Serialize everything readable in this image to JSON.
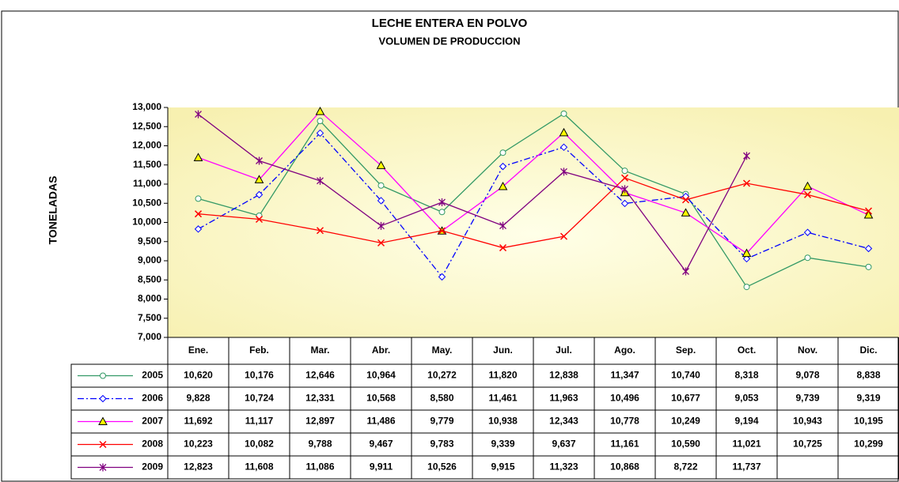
{
  "chart_data": {
    "type": "line",
    "title": "LECHE ENTERA EN POLVO",
    "subtitle": "VOLUMEN DE PRODUCCION",
    "y_label": "TONELADAS",
    "categories": [
      "Ene.",
      "Feb.",
      "Mar.",
      "Abr.",
      "May.",
      "Jun.",
      "Jul.",
      "Ago.",
      "Sep.",
      "Oct.",
      "Nov.",
      "Dic."
    ],
    "ylim": [
      7000,
      13000
    ],
    "yticks": [
      {
        "value": 7000,
        "label": "7,000"
      },
      {
        "value": 7500,
        "label": "7,500"
      },
      {
        "value": 8000,
        "label": "8,000"
      },
      {
        "value": 8500,
        "label": "8,500"
      },
      {
        "value": 9000,
        "label": "9,000"
      },
      {
        "value": 9500,
        "label": "9,500"
      },
      {
        "value": 10000,
        "label": "10,000"
      },
      {
        "value": 10500,
        "label": "10,500"
      },
      {
        "value": 11000,
        "label": "11,000"
      },
      {
        "value": 11500,
        "label": "11,500"
      },
      {
        "value": 12000,
        "label": "12,000"
      },
      {
        "value": 12500,
        "label": "12,500"
      },
      {
        "value": 13000,
        "label": "13,000"
      }
    ],
    "series": [
      {
        "name": "2005",
        "color": "#339966",
        "marker": "circle",
        "dash": "solid",
        "values": [
          10620,
          10176,
          12646,
          10964,
          10272,
          11820,
          12838,
          11347,
          10740,
          8318,
          9078,
          8838
        ],
        "value_labels": [
          "10,620",
          "10,176",
          "12,646",
          "10,964",
          "10,272",
          "11,820",
          "12,838",
          "11,347",
          "10,740",
          "8,318",
          "9,078",
          "8,838"
        ]
      },
      {
        "name": "2006",
        "color": "#0000ff",
        "marker": "diamond",
        "dash": "dashdot",
        "values": [
          9828,
          10724,
          12331,
          10568,
          8580,
          11461,
          11963,
          10496,
          10677,
          9053,
          9739,
          9319
        ],
        "value_labels": [
          "9,828",
          "10,724",
          "12,331",
          "10,568",
          "8,580",
          "11,461",
          "11,963",
          "10,496",
          "10,677",
          "9,053",
          "9,739",
          "9,319"
        ]
      },
      {
        "name": "2007",
        "color": "#ff00ff",
        "marker": "triangle",
        "dash": "solid",
        "values": [
          11692,
          11117,
          12897,
          11486,
          9779,
          10938,
          12343,
          10778,
          10249,
          9194,
          10943,
          10195
        ],
        "value_labels": [
          "11,692",
          "11,117",
          "12,897",
          "11,486",
          "9,779",
          "10,938",
          "12,343",
          "10,778",
          "10,249",
          "9,194",
          "10,943",
          "10,195"
        ]
      },
      {
        "name": "2008",
        "color": "#ff0000",
        "marker": "x",
        "dash": "solid",
        "values": [
          10223,
          10082,
          9788,
          9467,
          9783,
          9339,
          9637,
          11161,
          10590,
          11021,
          10725,
          10299
        ],
        "value_labels": [
          "10,223",
          "10,082",
          "9,788",
          "9,467",
          "9,783",
          "9,339",
          "9,637",
          "11,161",
          "10,590",
          "11,021",
          "10,725",
          "10,299"
        ]
      },
      {
        "name": "2009",
        "color": "#800080",
        "marker": "star",
        "dash": "solid",
        "values": [
          12823,
          11608,
          11086,
          9911,
          10526,
          9915,
          11323,
          10868,
          8722,
          11737,
          null,
          null
        ],
        "value_labels": [
          "12,823",
          "11,608",
          "11,086",
          "9,911",
          "10,526",
          "9,915",
          "11,323",
          "10,868",
          "8,722",
          "11,737",
          null,
          null
        ]
      }
    ]
  }
}
